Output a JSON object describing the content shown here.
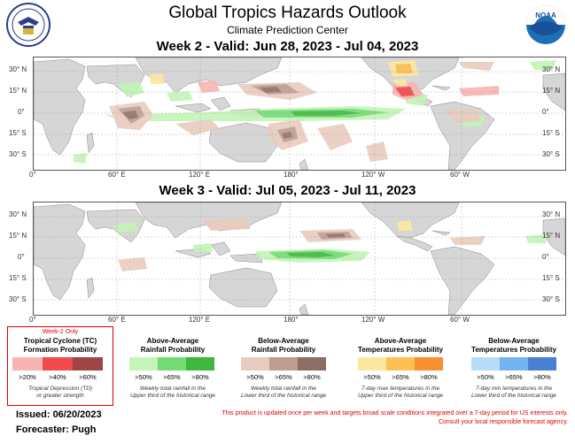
{
  "header": {
    "title": "Global Tropics Hazards Outlook",
    "subtitle": "Climate Prediction Center"
  },
  "week2": {
    "title": "Week 2 - Valid: Jun 28, 2023 - Jul 04, 2023"
  },
  "week3": {
    "title": "Week 3 - Valid: Jul 05, 2023 - Jul 11, 2023"
  },
  "axes": {
    "lat_labels": [
      "30° N",
      "15° N",
      "0°",
      "15° S",
      "30° S"
    ],
    "lon_labels": [
      "0°",
      "60° E",
      "120° E",
      "180°",
      "120° W",
      "60° W"
    ]
  },
  "legend": {
    "tc": {
      "header": "Week-2 Only",
      "title1": "Tropical Cyclone (TC)",
      "title2": "Formation Probability",
      "pcts": [
        ">20%",
        ">40%",
        ">60%"
      ],
      "note1": "Tropical Depression (TD)",
      "note2": "or greater strength",
      "colors": [
        "#f9b3b3",
        "#f04a4a",
        "#a04545"
      ]
    },
    "above_rain": {
      "title1": "Above-Average",
      "title2": "Rainfall Probability",
      "pcts": [
        ">50%",
        ">65%",
        ">80%"
      ],
      "note1": "Weekly total rainfall in the",
      "note2": "Upper third of the historical range",
      "colors": [
        "#c3f5b8",
        "#72dc72",
        "#3cb83c"
      ]
    },
    "below_rain": {
      "title1": "Below-Average",
      "title2": "Rainfall Probability",
      "pcts": [
        ">50%",
        ">65%",
        ">80%"
      ],
      "note1": "Weekly total rainfall in the",
      "note2": "Lower third of the historical range",
      "colors": [
        "#e8cbbf",
        "#bf9c90",
        "#8c6e66"
      ]
    },
    "above_temp": {
      "title1": "Above-Average",
      "title2": "Temperatures Probability",
      "pcts": [
        ">50%",
        ">65%",
        ">80%"
      ],
      "note1": "7-day max temperatures in the",
      "note2": "Upper third of the historical range",
      "colors": [
        "#fde8a0",
        "#fdc055",
        "#f89030"
      ]
    },
    "below_temp": {
      "title1": "Below-Average",
      "title2": "Temperatures Probability",
      "pcts": [
        ">50%",
        ">65%",
        ">80%"
      ],
      "note1": "7-day min temperatures in the",
      "note2": "Lower third of the historical range",
      "colors": [
        "#b7dcf8",
        "#72b4f2",
        "#4a7fd6"
      ]
    }
  },
  "footer": {
    "issued": "Issued: 06/20/2023",
    "forecaster": "Forecaster: Pugh",
    "disclaimer1": "This product is updated once per week and targets broad scale conditions integrated over a 7-day period for US interests only.",
    "disclaimer2": "Consult your local responsible forecast agency."
  }
}
